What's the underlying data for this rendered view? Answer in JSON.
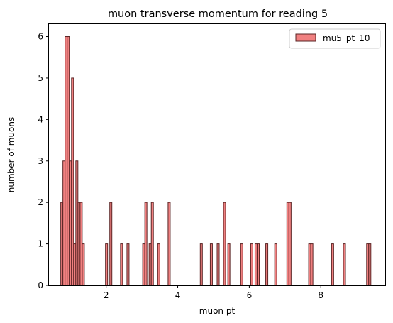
{
  "chart_data": {
    "type": "bar",
    "title": "muon transverse momentum for reading 5",
    "xlabel": "muon pt",
    "ylabel": "number of muons",
    "xlim": [
      0.4,
      9.8
    ],
    "ylim": [
      0,
      6.3
    ],
    "xticks": [
      2,
      4,
      6,
      8
    ],
    "yticks": [
      0,
      1,
      2,
      3,
      4,
      5,
      6
    ],
    "bin_width": 0.0594,
    "bar_color": "#f08080",
    "edge_color": "#5a2424",
    "grid": false,
    "legend_position": "top-right",
    "series": [
      {
        "name": "mu5_pt_10",
        "bins": [
          {
            "x": 0.73,
            "count": 2
          },
          {
            "x": 0.79,
            "count": 3
          },
          {
            "x": 0.85,
            "count": 6
          },
          {
            "x": 0.91,
            "count": 6
          },
          {
            "x": 0.97,
            "count": 3
          },
          {
            "x": 1.03,
            "count": 5
          },
          {
            "x": 1.09,
            "count": 1
          },
          {
            "x": 1.15,
            "count": 3
          },
          {
            "x": 1.21,
            "count": 2
          },
          {
            "x": 1.27,
            "count": 2
          },
          {
            "x": 1.33,
            "count": 1
          },
          {
            "x": 1.98,
            "count": 1
          },
          {
            "x": 2.1,
            "count": 2
          },
          {
            "x": 2.4,
            "count": 1
          },
          {
            "x": 2.58,
            "count": 1
          },
          {
            "x": 3.02,
            "count": 1
          },
          {
            "x": 3.08,
            "count": 2
          },
          {
            "x": 3.2,
            "count": 1
          },
          {
            "x": 3.26,
            "count": 2
          },
          {
            "x": 3.44,
            "count": 1
          },
          {
            "x": 3.73,
            "count": 2
          },
          {
            "x": 4.63,
            "count": 1
          },
          {
            "x": 4.91,
            "count": 1
          },
          {
            "x": 5.1,
            "count": 1
          },
          {
            "x": 5.28,
            "count": 2
          },
          {
            "x": 5.4,
            "count": 1
          },
          {
            "x": 5.76,
            "count": 1
          },
          {
            "x": 6.04,
            "count": 1
          },
          {
            "x": 6.16,
            "count": 1
          },
          {
            "x": 6.22,
            "count": 1
          },
          {
            "x": 6.46,
            "count": 1
          },
          {
            "x": 6.71,
            "count": 1
          },
          {
            "x": 7.05,
            "count": 2
          },
          {
            "x": 7.11,
            "count": 2
          },
          {
            "x": 7.66,
            "count": 1
          },
          {
            "x": 7.72,
            "count": 1
          },
          {
            "x": 8.3,
            "count": 1
          },
          {
            "x": 8.63,
            "count": 1
          },
          {
            "x": 9.28,
            "count": 1
          },
          {
            "x": 9.34,
            "count": 1
          }
        ]
      }
    ]
  }
}
